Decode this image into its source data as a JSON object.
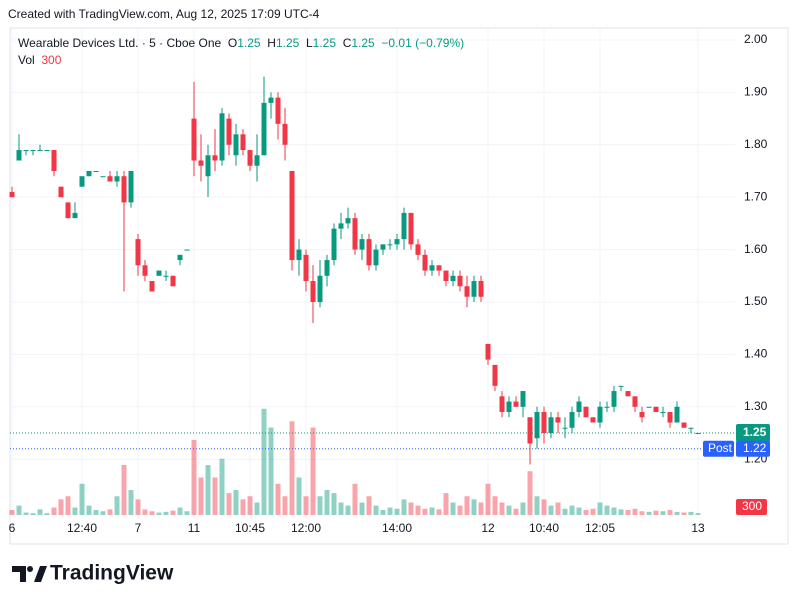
{
  "caption": "Created with TradingView.com, Aug 12, 2025 17:09 UTC-4",
  "brand": "TradingView",
  "chart_data": {
    "type": "candlestick",
    "symbol": "Wearable Devices Ltd. · 5 · Cboe One",
    "ohlc_labels": [
      "O",
      "H",
      "L",
      "C"
    ],
    "change": "−0.01 (−0.79%)",
    "volume_label": "Vol",
    "up_color": "#089981",
    "down_color": "#f23645",
    "post_label": "Post",
    "post_price": 1.22,
    "post_color": "#2962ff",
    "ylim": [
      1.1,
      2.02
    ],
    "yticks": [
      {
        "value": 1.2,
        "label": "1.20"
      },
      {
        "value": 1.3,
        "label": "1.30"
      },
      {
        "value": 1.4,
        "label": "1.40"
      },
      {
        "value": 1.5,
        "label": "1.50"
      },
      {
        "value": 1.6,
        "label": "1.60"
      },
      {
        "value": 1.7,
        "label": "1.70"
      },
      {
        "value": 1.8,
        "label": "1.80"
      },
      {
        "value": 1.9,
        "label": "1.90"
      },
      {
        "value": 2.0,
        "label": "2.00"
      }
    ],
    "xticks": [
      {
        "value": 0,
        "label": "6"
      },
      {
        "value": 10,
        "label": "12:40"
      },
      {
        "value": 18,
        "label": "7"
      },
      {
        "value": 26,
        "label": "11"
      },
      {
        "value": 34,
        "label": "10:45"
      },
      {
        "value": 42,
        "label": "12:00"
      },
      {
        "value": 55,
        "label": "14:00"
      },
      {
        "value": 68,
        "label": "12"
      },
      {
        "value": 76,
        "label": "10:40"
      },
      {
        "value": 84,
        "label": "12:05"
      },
      {
        "value": 98,
        "label": "13"
      }
    ],
    "grid": true,
    "candles": [
      [
        1.71,
        1.72,
        1.7,
        1.7
      ],
      [
        1.77,
        1.82,
        1.77,
        1.79
      ],
      [
        1.79,
        1.79,
        1.78,
        1.79
      ],
      [
        1.79,
        1.79,
        1.78,
        1.79
      ],
      [
        1.79,
        1.8,
        1.79,
        1.79
      ],
      [
        1.79,
        1.79,
        1.79,
        1.79
      ],
      [
        1.79,
        1.79,
        1.74,
        1.75
      ],
      [
        1.72,
        1.72,
        1.7,
        1.7
      ],
      [
        1.69,
        1.69,
        1.66,
        1.66
      ],
      [
        1.66,
        1.69,
        1.66,
        1.67
      ],
      [
        1.72,
        1.74,
        1.72,
        1.74
      ],
      [
        1.74,
        1.75,
        1.74,
        1.75
      ],
      [
        1.75,
        1.75,
        1.75,
        1.75
      ],
      [
        1.74,
        1.74,
        1.74,
        1.74
      ],
      [
        1.74,
        1.75,
        1.73,
        1.73
      ],
      [
        1.73,
        1.75,
        1.72,
        1.74
      ],
      [
        1.74,
        1.75,
        1.52,
        1.69
      ],
      [
        1.69,
        1.75,
        1.68,
        1.75
      ],
      [
        1.62,
        1.63,
        1.55,
        1.57
      ],
      [
        1.57,
        1.58,
        1.54,
        1.55
      ],
      [
        1.54,
        1.54,
        1.52,
        1.52
      ],
      [
        1.55,
        1.56,
        1.55,
        1.56
      ],
      [
        1.55,
        1.56,
        1.54,
        1.55
      ],
      [
        1.55,
        1.55,
        1.53,
        1.53
      ],
      [
        1.58,
        1.59,
        1.57,
        1.59
      ],
      [
        1.6,
        1.6,
        1.6,
        1.6
      ],
      [
        1.85,
        1.92,
        1.74,
        1.77
      ],
      [
        1.77,
        1.82,
        1.73,
        1.76
      ],
      [
        1.74,
        1.8,
        1.7,
        1.78
      ],
      [
        1.78,
        1.83,
        1.75,
        1.77
      ],
      [
        1.77,
        1.87,
        1.76,
        1.86
      ],
      [
        1.85,
        1.86,
        1.78,
        1.8
      ],
      [
        1.78,
        1.84,
        1.76,
        1.82
      ],
      [
        1.82,
        1.83,
        1.78,
        1.79
      ],
      [
        1.79,
        1.79,
        1.75,
        1.76
      ],
      [
        1.76,
        1.82,
        1.73,
        1.78
      ],
      [
        1.78,
        1.93,
        1.78,
        1.88
      ],
      [
        1.88,
        1.9,
        1.85,
        1.89
      ],
      [
        1.89,
        1.9,
        1.81,
        1.84
      ],
      [
        1.84,
        1.87,
        1.77,
        1.8
      ],
      [
        1.75,
        1.75,
        1.56,
        1.58
      ],
      [
        1.58,
        1.62,
        1.55,
        1.6
      ],
      [
        1.59,
        1.6,
        1.52,
        1.54
      ],
      [
        1.54,
        1.57,
        1.46,
        1.5
      ],
      [
        1.5,
        1.58,
        1.49,
        1.55
      ],
      [
        1.55,
        1.59,
        1.53,
        1.58
      ],
      [
        1.58,
        1.65,
        1.57,
        1.64
      ],
      [
        1.64,
        1.67,
        1.62,
        1.65
      ],
      [
        1.65,
        1.68,
        1.64,
        1.66
      ],
      [
        1.66,
        1.67,
        1.59,
        1.6
      ],
      [
        1.6,
        1.63,
        1.58,
        1.62
      ],
      [
        1.62,
        1.63,
        1.56,
        1.57
      ],
      [
        1.57,
        1.61,
        1.56,
        1.6
      ],
      [
        1.6,
        1.61,
        1.59,
        1.61
      ],
      [
        1.61,
        1.62,
        1.6,
        1.61
      ],
      [
        1.61,
        1.63,
        1.6,
        1.62
      ],
      [
        1.62,
        1.68,
        1.6,
        1.67
      ],
      [
        1.67,
        1.67,
        1.6,
        1.61
      ],
      [
        1.61,
        1.62,
        1.58,
        1.59
      ],
      [
        1.59,
        1.6,
        1.55,
        1.56
      ],
      [
        1.56,
        1.58,
        1.55,
        1.57
      ],
      [
        1.57,
        1.57,
        1.55,
        1.56
      ],
      [
        1.56,
        1.56,
        1.53,
        1.54
      ],
      [
        1.54,
        1.56,
        1.53,
        1.55
      ],
      [
        1.55,
        1.56,
        1.52,
        1.53
      ],
      [
        1.53,
        1.55,
        1.49,
        1.51
      ],
      [
        1.51,
        1.55,
        1.5,
        1.54
      ],
      [
        1.54,
        1.55,
        1.5,
        1.51
      ],
      [
        1.42,
        1.42,
        1.38,
        1.39
      ],
      [
        1.38,
        1.38,
        1.33,
        1.34
      ],
      [
        1.32,
        1.33,
        1.28,
        1.29
      ],
      [
        1.29,
        1.32,
        1.28,
        1.31
      ],
      [
        1.31,
        1.32,
        1.3,
        1.3
      ],
      [
        1.3,
        1.33,
        1.28,
        1.33
      ],
      [
        1.28,
        1.28,
        1.19,
        1.23
      ],
      [
        1.24,
        1.3,
        1.22,
        1.29
      ],
      [
        1.29,
        1.3,
        1.23,
        1.25
      ],
      [
        1.25,
        1.29,
        1.24,
        1.28
      ],
      [
        1.28,
        1.29,
        1.25,
        1.27
      ],
      [
        1.26,
        1.28,
        1.24,
        1.26
      ],
      [
        1.26,
        1.3,
        1.25,
        1.29
      ],
      [
        1.29,
        1.32,
        1.28,
        1.31
      ],
      [
        1.3,
        1.3,
        1.28,
        1.28
      ],
      [
        1.28,
        1.28,
        1.27,
        1.27
      ],
      [
        1.27,
        1.31,
        1.26,
        1.3
      ],
      [
        1.3,
        1.31,
        1.29,
        1.3
      ],
      [
        1.3,
        1.34,
        1.29,
        1.33
      ],
      [
        1.34,
        1.34,
        1.33,
        1.34
      ],
      [
        1.33,
        1.33,
        1.32,
        1.32
      ],
      [
        1.32,
        1.32,
        1.29,
        1.3
      ],
      [
        1.29,
        1.3,
        1.27,
        1.28
      ],
      [
        1.3,
        1.3,
        1.3,
        1.3
      ],
      [
        1.3,
        1.3,
        1.29,
        1.29
      ],
      [
        1.29,
        1.3,
        1.28,
        1.29
      ],
      [
        1.29,
        1.29,
        1.26,
        1.27
      ],
      [
        1.27,
        1.31,
        1.27,
        1.3
      ],
      [
        1.27,
        1.27,
        1.26,
        1.26
      ],
      [
        1.26,
        1.26,
        1.25,
        1.26
      ],
      [
        1.25,
        1.25,
        1.25,
        1.25
      ]
    ],
    "volume_lim": [
      0,
      20000
    ],
    "volume": [
      800,
      1500,
      400,
      300,
      900,
      300,
      1200,
      2500,
      3000,
      1200,
      5000,
      1500,
      800,
      600,
      900,
      3000,
      8000,
      4000,
      2500,
      900,
      600,
      400,
      500,
      700,
      1200,
      600,
      12000,
      6000,
      8000,
      6000,
      9000,
      3500,
      4000,
      2500,
      3000,
      2000,
      17000,
      14000,
      5000,
      3000,
      15000,
      6000,
      3000,
      14000,
      3000,
      4000,
      3500,
      2000,
      1500,
      5000,
      2000,
      3000,
      1500,
      800,
      1200,
      1000,
      2500,
      2000,
      1500,
      1000,
      1200,
      900,
      3500,
      2000,
      1500,
      3000,
      2500,
      2000,
      5000,
      3000,
      2000,
      1500,
      1000,
      2000,
      7000,
      3000,
      2500,
      1500,
      2000,
      1000,
      1500,
      1200,
      800,
      1000,
      2000,
      1500,
      1200,
      900,
      800,
      1000,
      600,
      500,
      700,
      600,
      800,
      500,
      400,
      500,
      300
    ]
  }
}
